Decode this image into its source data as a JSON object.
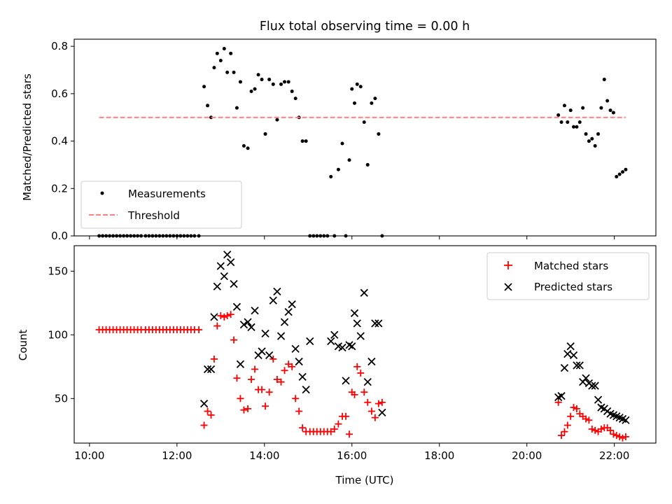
{
  "figure_title": "Flux total observing time = 0.00 h",
  "chart_data": [
    {
      "type": "scatter",
      "ylabel": "Matched/Predicted stars",
      "xlim": [
        9.65,
        22.95
      ],
      "ylim": [
        0,
        0.83
      ],
      "yticks": [
        0.0,
        0.2,
        0.4,
        0.6,
        0.8
      ],
      "ytick_labels": [
        "0.0",
        "0.2",
        "0.4",
        "0.6",
        "0.8"
      ],
      "grid": false,
      "legend_position": "lower-left",
      "legend": [
        "Measurements",
        "Threshold"
      ],
      "series": [
        {
          "name": "Measurements",
          "marker": "dot",
          "color": "#000000",
          "x": [
            10.22,
            10.3,
            10.38,
            10.46,
            10.54,
            10.62,
            10.7,
            10.78,
            10.86,
            10.94,
            11.02,
            11.1,
            11.18,
            11.28,
            11.36,
            11.44,
            11.52,
            11.6,
            11.68,
            11.76,
            11.84,
            11.92,
            12.0,
            12.08,
            12.16,
            12.24,
            12.32,
            12.4,
            12.5,
            12.62,
            12.7,
            12.78,
            12.85,
            12.92,
            13.0,
            13.08,
            13.15,
            13.23,
            13.3,
            13.37,
            13.45,
            13.53,
            13.62,
            13.7,
            13.78,
            13.86,
            13.94,
            14.02,
            14.11,
            14.2,
            14.29,
            14.38,
            14.46,
            14.55,
            14.63,
            14.71,
            14.79,
            14.87,
            14.95,
            15.04,
            15.12,
            15.2,
            15.28,
            15.36,
            15.44,
            15.52,
            15.6,
            15.69,
            15.78,
            15.86,
            15.94,
            16.0,
            16.06,
            16.12,
            16.2,
            16.28,
            16.36,
            16.45,
            16.53,
            16.61,
            16.69,
            20.72,
            20.79,
            20.86,
            20.93,
            21.0,
            21.07,
            21.14,
            21.21,
            21.28,
            21.35,
            21.42,
            21.49,
            21.56,
            21.63,
            21.7,
            21.77,
            21.84,
            21.91,
            21.98,
            22.05,
            22.12,
            22.19,
            22.26
          ],
          "y": [
            0,
            0,
            0,
            0,
            0,
            0,
            0,
            0,
            0,
            0,
            0,
            0,
            0,
            0,
            0,
            0,
            0,
            0,
            0,
            0,
            0,
            0,
            0,
            0,
            0,
            0,
            0,
            0,
            0,
            0.63,
            0.55,
            0.5,
            0.71,
            0.77,
            0.74,
            0.79,
            0.69,
            0.77,
            0.69,
            0.54,
            0.65,
            0.38,
            0.37,
            0.61,
            0.62,
            0.68,
            0.66,
            0.43,
            0.66,
            0.64,
            0.49,
            0.64,
            0.65,
            0.65,
            0.61,
            0.58,
            0.5,
            0.4,
            0.4,
            0,
            0,
            0,
            0,
            0,
            0,
            0.25,
            0,
            0.28,
            0.39,
            0,
            0.32,
            0.62,
            0.56,
            0.64,
            0.63,
            0.48,
            0.3,
            0.56,
            0.58,
            0.43,
            0,
            0.51,
            0.48,
            0.55,
            0.48,
            0.53,
            0.46,
            0.46,
            0.48,
            0.54,
            0.43,
            0.4,
            0.41,
            0.38,
            0.43,
            0.54,
            0.66,
            0.57,
            0.53,
            0.52,
            0.25,
            0.26,
            0.27,
            0.28
          ]
        },
        {
          "name": "Threshold",
          "style": "dashed",
          "color": "#ff7f7f",
          "x": [
            10.22,
            22.26
          ],
          "y": [
            0.5,
            0.5
          ]
        }
      ]
    },
    {
      "type": "scatter",
      "xlabel": "Time (UTC)",
      "ylabel": "Count",
      "xlim": [
        9.65,
        22.95
      ],
      "ylim": [
        15,
        170
      ],
      "xticks": [
        10,
        12,
        14,
        16,
        18,
        20,
        22
      ],
      "xtick_labels": [
        "10:00",
        "12:00",
        "14:00",
        "16:00",
        "18:00",
        "20:00",
        "22:00"
      ],
      "yticks": [
        50,
        100,
        150
      ],
      "ytick_labels": [
        "50",
        "100",
        "150"
      ],
      "grid": false,
      "legend_position": "top-right",
      "legend": [
        "Matched stars",
        "Predicted stars"
      ],
      "series": [
        {
          "name": "Matched stars",
          "marker": "plus",
          "color": "#ff0000",
          "x": [
            10.22,
            10.3,
            10.38,
            10.46,
            10.54,
            10.62,
            10.7,
            10.78,
            10.86,
            10.94,
            11.02,
            11.1,
            11.18,
            11.28,
            11.36,
            11.44,
            11.52,
            11.6,
            11.68,
            11.76,
            11.84,
            11.92,
            12.0,
            12.08,
            12.16,
            12.24,
            12.32,
            12.4,
            12.5,
            12.62,
            12.7,
            12.78,
            12.85,
            12.92,
            13.0,
            13.08,
            13.15,
            13.23,
            13.3,
            13.37,
            13.45,
            13.53,
            13.62,
            13.7,
            13.78,
            13.86,
            13.94,
            14.02,
            14.11,
            14.2,
            14.29,
            14.38,
            14.46,
            14.55,
            14.63,
            14.71,
            14.79,
            14.87,
            14.95,
            15.04,
            15.12,
            15.2,
            15.28,
            15.36,
            15.44,
            15.52,
            15.6,
            15.69,
            15.78,
            15.86,
            15.94,
            16.0,
            16.06,
            16.12,
            16.2,
            16.28,
            16.36,
            16.45,
            16.53,
            16.61,
            16.69,
            20.72,
            20.79,
            20.86,
            20.93,
            21.0,
            21.07,
            21.14,
            21.21,
            21.28,
            21.35,
            21.42,
            21.49,
            21.56,
            21.63,
            21.7,
            21.77,
            21.84,
            21.91,
            21.98,
            22.05,
            22.12,
            22.19,
            22.26
          ],
          "y": [
            104,
            104,
            104,
            104,
            104,
            104,
            104,
            104,
            104,
            104,
            104,
            104,
            104,
            104,
            104,
            104,
            104,
            104,
            104,
            104,
            104,
            104,
            104,
            104,
            104,
            104,
            104,
            104,
            104,
            29,
            40,
            37,
            81,
            107,
            115,
            114,
            115,
            116,
            96,
            66,
            50,
            41,
            42,
            65,
            73,
            57,
            57,
            44,
            55,
            81,
            65,
            63,
            72,
            77,
            75,
            50,
            40,
            27,
            24,
            24,
            24,
            24,
            24,
            24,
            24,
            24,
            26,
            30,
            36,
            36,
            22,
            55,
            53,
            75,
            70,
            55,
            47,
            40,
            35,
            46,
            47,
            47,
            21,
            24,
            29,
            36,
            43,
            42,
            38,
            36,
            34,
            33,
            26,
            25,
            24,
            26,
            27,
            27,
            25,
            22,
            21,
            20,
            19,
            20
          ]
        },
        {
          "name": "Predicted stars",
          "marker": "x",
          "color": "#000000",
          "x": [
            12.62,
            12.7,
            12.78,
            12.85,
            12.92,
            13.0,
            13.08,
            13.15,
            13.23,
            13.3,
            13.37,
            13.45,
            13.53,
            13.62,
            13.7,
            13.78,
            13.86,
            13.94,
            14.02,
            14.11,
            14.2,
            14.29,
            14.38,
            14.46,
            14.55,
            14.63,
            14.71,
            14.79,
            14.87,
            14.95,
            15.04,
            15.52,
            15.6,
            15.69,
            15.78,
            15.86,
            15.94,
            16.0,
            16.06,
            16.12,
            16.2,
            16.28,
            16.36,
            16.45,
            16.53,
            16.61,
            16.69,
            20.72,
            20.79,
            20.86,
            20.93,
            21.0,
            21.07,
            21.14,
            21.21,
            21.28,
            21.35,
            21.42,
            21.49,
            21.56,
            21.63,
            21.7,
            21.77,
            21.84,
            21.91,
            21.98,
            22.05,
            22.12,
            22.19,
            22.26
          ],
          "y": [
            46,
            73,
            73,
            114,
            138,
            154,
            146,
            163,
            157,
            140,
            122,
            77,
            108,
            110,
            106,
            119,
            84,
            87,
            101,
            84,
            127,
            134,
            99,
            110,
            118,
            124,
            89,
            79,
            67,
            57,
            95,
            95,
            100,
            91,
            90,
            64,
            92,
            91,
            117,
            109,
            99,
            133,
            63,
            79,
            109,
            109,
            39,
            51,
            52,
            74,
            85,
            91,
            84,
            76,
            76,
            63,
            66,
            62,
            60,
            60,
            49,
            43,
            42,
            40,
            38,
            37,
            36,
            35,
            34,
            33
          ]
        }
      ]
    }
  ]
}
